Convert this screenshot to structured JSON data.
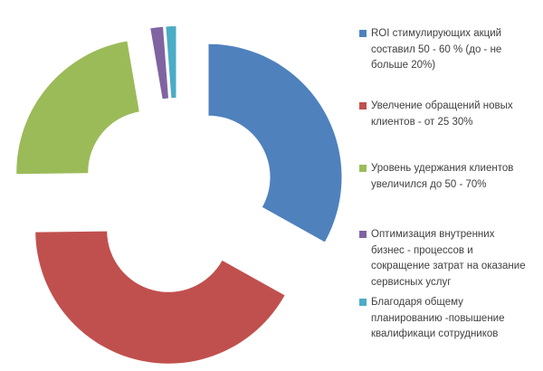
{
  "background_color": "#FFFFFF",
  "legend_text_color": "#404040",
  "chart_data": {
    "type": "doughnut",
    "title": "",
    "legend_position": "right",
    "direction": "clockwise",
    "start_angle_deg": 0,
    "hole_ratio": 0.46,
    "exploded": true,
    "values_unit": "percent of circle (estimated from arc angles)",
    "series": [
      {
        "label": "ROI стимулирующих акций составил 50 - 60 % (до - не больше 20%)",
        "label_lines": [
          "ROI стимулирующих акций",
          "составил 50 - 60 % (до - не",
          "больше 20%)"
        ],
        "value": 33.1,
        "color": "#4F81BD"
      },
      {
        "label": "Увелчение обращений новых клиентов - от 25 30%",
        "label_lines": [
          "Увелчение обращений новых",
          "клиентов - от 25 30%"
        ],
        "value": 41.7,
        "color": "#C0504D"
      },
      {
        "label": "Уровень удержания клиентов увеличился до 50 - 70%",
        "label_lines": [
          "Уровень удержания клиентов",
          "увеличился до 50 - 70%"
        ],
        "value": 22.5,
        "color": "#9BBB59"
      },
      {
        "label": "Оптимизация внутренних бизнес - процессов и сокращение затрат на оказание сервисных услуг",
        "label_lines": [
          "Оптимизация внутренних",
          "бизнес - процессов и",
          "сокращение затрат на оказание",
          "сервисных услуг"
        ],
        "value": 1.5,
        "color": "#8064A2"
      },
      {
        "label": "Благодаря общему планированию -повышение квалификаци сотрудников",
        "label_lines": [
          "Благодаря общему",
          "планированию -повышение",
          "квалификаци сотрудников"
        ],
        "value": 1.2,
        "color": "#4BACC6"
      }
    ]
  }
}
